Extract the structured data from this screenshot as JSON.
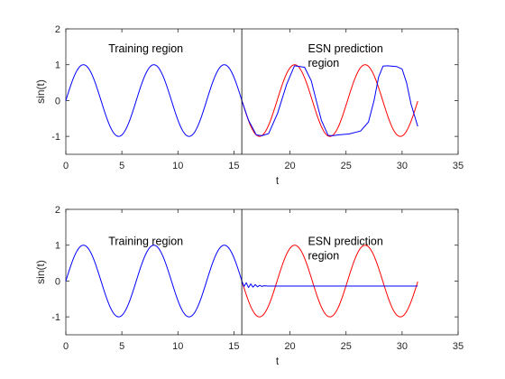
{
  "chart_data": [
    {
      "type": "line",
      "xlabel": "t",
      "ylabel": "sin(t)",
      "xlim": [
        0,
        35
      ],
      "ylim": [
        -1.5,
        2
      ],
      "xticks": [
        "0",
        "5",
        "10",
        "15",
        "20",
        "25",
        "30",
        "35"
      ],
      "yticks": [
        "-1",
        "0",
        "1",
        "2"
      ],
      "divider_x": 15.7,
      "annotations": [
        {
          "text": "Training region",
          "lines": [
            "Training region"
          ],
          "x": 3.8,
          "y": 1.35
        },
        {
          "text": "ESN prediction region",
          "lines": [
            "ESN prediction",
            "region"
          ],
          "x": 21.6,
          "y": 1.35
        }
      ],
      "series": [
        {
          "color": "#0000ff",
          "kind": "sine",
          "x_start": 0,
          "x_end": 15.7
        },
        {
          "color": "#ff0000",
          "kind": "sine",
          "x_start": 15.7,
          "x_end": 31.4
        },
        {
          "color": "#0000ff",
          "kind": "points",
          "x": [
            15.7,
            16.3,
            17.0,
            17.5,
            18.1,
            18.9,
            19.7,
            20.4,
            21.3,
            21.9,
            22.3,
            22.8,
            23.4,
            23.8,
            24.3,
            25.3,
            26.3,
            27.0,
            27.5,
            27.9,
            28.3,
            28.7,
            29.5,
            30.0,
            30.4,
            30.8,
            31.4
          ],
          "y": [
            0.0,
            -0.55,
            -0.96,
            -0.98,
            -0.92,
            -0.35,
            0.45,
            0.97,
            0.93,
            0.55,
            0.05,
            -0.55,
            -0.97,
            -0.98,
            -0.96,
            -0.93,
            -0.85,
            -0.6,
            0.0,
            0.65,
            0.96,
            0.97,
            0.95,
            0.88,
            0.5,
            -0.1,
            -0.72
          ]
        }
      ]
    },
    {
      "type": "line",
      "xlabel": "t",
      "ylabel": "sin(t)",
      "xlim": [
        0,
        35
      ],
      "ylim": [
        -1.5,
        2
      ],
      "xticks": [
        "0",
        "5",
        "10",
        "15",
        "20",
        "25",
        "30",
        "35"
      ],
      "yticks": [
        "-1",
        "0",
        "1",
        "2"
      ],
      "divider_x": 15.7,
      "annotations": [
        {
          "text": "Training region",
          "lines": [
            "Training region"
          ],
          "x": 3.8,
          "y": 1.0
        },
        {
          "text": "ESN prediction region",
          "lines": [
            "ESN prediction",
            "region"
          ],
          "x": 21.6,
          "y": 1.0
        }
      ],
      "series": [
        {
          "color": "#0000ff",
          "kind": "sine",
          "x_start": 0,
          "x_end": 15.7
        },
        {
          "color": "#ff0000",
          "kind": "sine",
          "x_start": 15.7,
          "x_end": 31.4
        },
        {
          "color": "#0000ff",
          "kind": "points",
          "x": [
            15.7,
            15.9,
            16.1,
            16.3,
            16.5,
            16.7,
            16.9,
            17.1,
            17.3,
            17.5,
            17.7,
            18.0,
            18.5,
            31.4
          ],
          "y": [
            0.0,
            -0.15,
            -0.05,
            -0.18,
            -0.08,
            -0.17,
            -0.1,
            -0.16,
            -0.12,
            -0.15,
            -0.13,
            -0.14,
            -0.14,
            -0.14
          ]
        }
      ]
    }
  ]
}
